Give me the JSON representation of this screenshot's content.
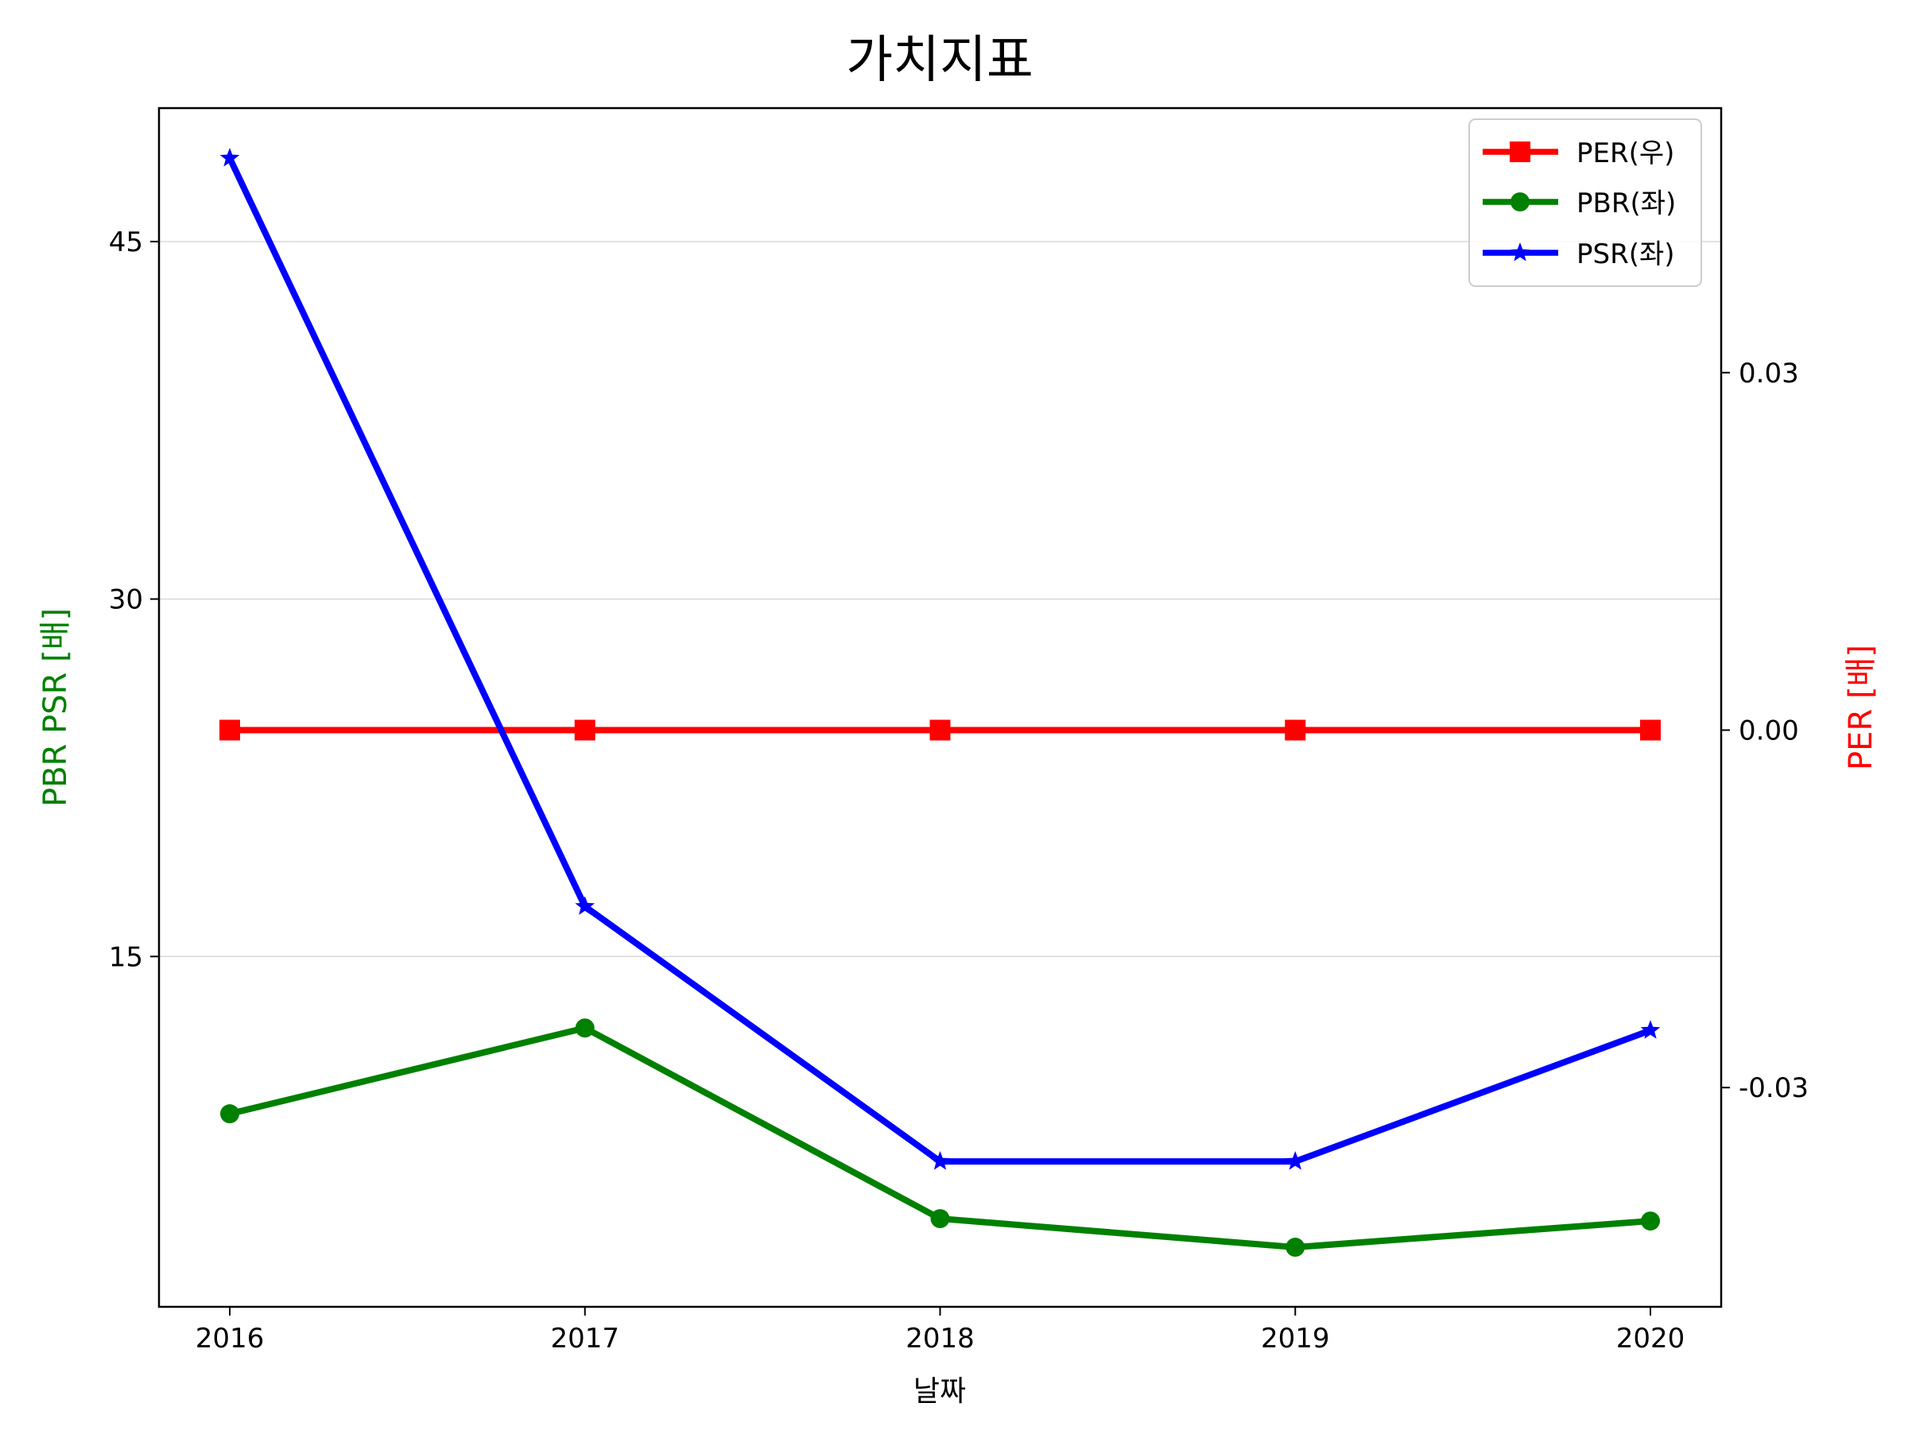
{
  "chart_data": {
    "type": "line",
    "title": "가치지표",
    "xlabel": "날짜",
    "ylabel_left": "PBR PSR [배]",
    "ylabel_right": "PER [배]",
    "categories": [
      "2016",
      "2017",
      "2018",
      "2019",
      "2020"
    ],
    "left_axis": {
      "ticks": [
        15,
        30,
        45
      ],
      "tick_labels": [
        "15",
        "30",
        "45"
      ],
      "range": [
        0.3,
        50.6
      ],
      "grid": true
    },
    "right_axis": {
      "ticks": [
        -0.03,
        0.0,
        0.03
      ],
      "tick_labels": [
        "-0.03",
        "0.00",
        "0.03"
      ],
      "range": [
        -0.0484,
        0.0522
      ]
    },
    "series": [
      {
        "name": "PER(우)",
        "axis": "right",
        "color": "#ff0000",
        "marker": "square",
        "values": [
          0.0,
          0.0,
          0.0,
          0.0,
          0.0
        ]
      },
      {
        "name": "PBR(좌)",
        "axis": "left",
        "color": "#008000",
        "marker": "circle",
        "values": [
          8.4,
          12.0,
          4.0,
          2.8,
          3.9
        ]
      },
      {
        "name": "PSR(좌)",
        "axis": "left",
        "color": "#0000ff",
        "marker": "star",
        "values": [
          48.5,
          17.1,
          6.4,
          6.4,
          11.9
        ]
      }
    ],
    "legend": {
      "position": "top-right"
    },
    "colors": {
      "left_label": "#008000",
      "right_label": "#ff0000",
      "axes": "#000000",
      "grid": "#d9d9d9"
    }
  }
}
